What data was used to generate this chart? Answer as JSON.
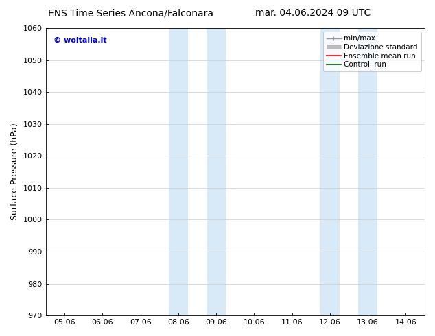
{
  "title_left": "ENS Time Series Ancona/Falconara",
  "title_right": "mar. 04.06.2024 09 UTC",
  "ylabel": "Surface Pressure (hPa)",
  "ylim": [
    970,
    1060
  ],
  "yticks": [
    970,
    980,
    990,
    1000,
    1010,
    1020,
    1030,
    1040,
    1050,
    1060
  ],
  "xtick_labels": [
    "05.06",
    "06.06",
    "07.06",
    "08.06",
    "09.06",
    "10.06",
    "11.06",
    "12.06",
    "13.06",
    "14.06"
  ],
  "xtick_positions": [
    0,
    1,
    2,
    3,
    4,
    5,
    6,
    7,
    8,
    9
  ],
  "shaded_bands": [
    {
      "xstart": 2.75,
      "xend": 3.25
    },
    {
      "xstart": 3.75,
      "xend": 4.25
    },
    {
      "xstart": 6.75,
      "xend": 7.25
    },
    {
      "xstart": 7.75,
      "xend": 8.25
    }
  ],
  "shaded_color": "#d8eaf8",
  "watermark_text": "© woitalia.it",
  "watermark_color": "#0000cc",
  "legend_entries": [
    {
      "label": "min/max",
      "color": "#999999",
      "lw": 1.0
    },
    {
      "label": "Deviazione standard",
      "color": "#bbbbbb",
      "lw": 5
    },
    {
      "label": "Ensemble mean run",
      "color": "#ff0000",
      "lw": 1.2
    },
    {
      "label": "Controll run",
      "color": "#006600",
      "lw": 1.2
    }
  ],
  "bg_color": "#ffffff",
  "grid_color": "#cccccc",
  "title_fontsize": 10,
  "tick_fontsize": 8,
  "ylabel_fontsize": 9,
  "legend_fontsize": 7.5,
  "watermark_fontsize": 8
}
